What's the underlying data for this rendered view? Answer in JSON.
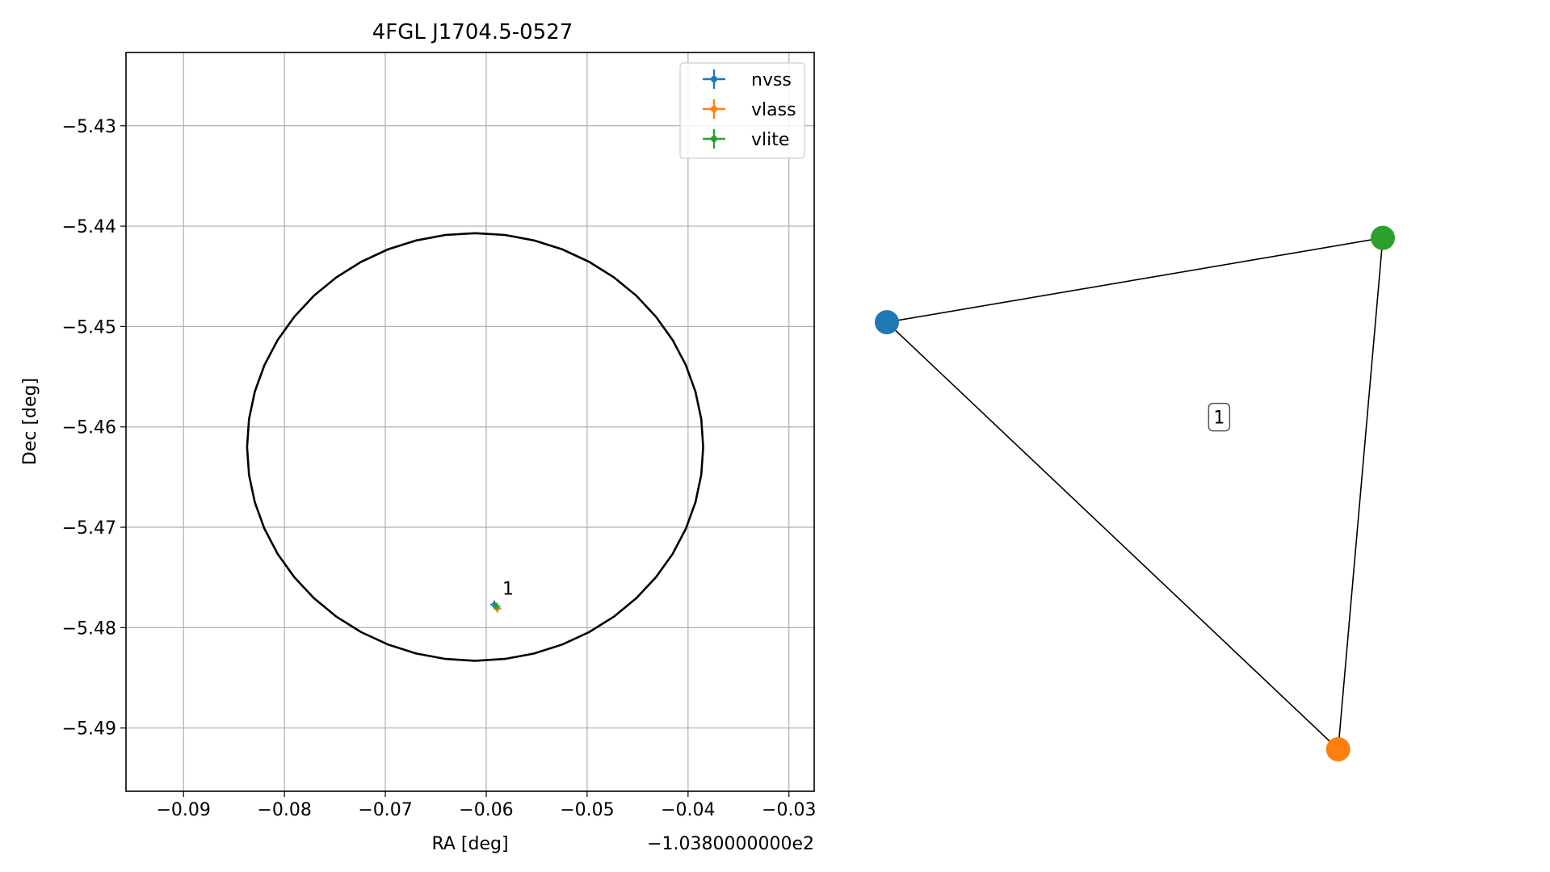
{
  "chart_data": [
    {
      "type": "scatter",
      "title": "4FGL J1704.5-0527",
      "xlabel": "RA [deg]",
      "ylabel": "Dec [deg]",
      "x_offset_label": "−1.0380000000e2",
      "xlim": [
        -0.0957,
        -0.0275
      ],
      "ylim": [
        -5.4963,
        -5.4227
      ],
      "x_ticks": [
        -0.09,
        -0.08,
        -0.07,
        -0.06,
        -0.05,
        -0.04,
        -0.03
      ],
      "x_tick_labels": [
        "−0.09",
        "−0.08",
        "−0.07",
        "−0.06",
        "−0.05",
        "−0.04",
        "−0.03"
      ],
      "y_ticks": [
        -5.43,
        -5.44,
        -5.45,
        -5.46,
        -5.47,
        -5.48,
        -5.49
      ],
      "y_tick_labels": [
        "−5.43",
        "−5.44",
        "−5.45",
        "−5.46",
        "−5.47",
        "−5.48",
        "−5.49"
      ],
      "grid": true,
      "legend_position": "top-right",
      "circle": {
        "center": [
          -0.0611,
          -5.462
        ],
        "radius_x": 0.0226,
        "radius_y": 0.0213
      },
      "series": [
        {
          "name": "nvss",
          "color": "#1f77b4",
          "x": [
            -0.0592
          ],
          "y": [
            -5.4777
          ]
        },
        {
          "name": "vlass",
          "color": "#ff7f0e",
          "x": [
            -0.0589
          ],
          "y": [
            -5.4781
          ]
        },
        {
          "name": "vlite",
          "color": "#2ca02c",
          "x": [
            -0.059
          ],
          "y": [
            -5.4779
          ]
        }
      ],
      "annotations": [
        {
          "text": "1",
          "x": -0.0584,
          "y": -5.4767
        }
      ]
    },
    {
      "type": "network",
      "nodes": [
        {
          "name": "nvss",
          "color": "#1f77b4",
          "x": 0.0,
          "y": 0.81
        },
        {
          "name": "vlite",
          "color": "#2ca02c",
          "x": 1.0,
          "y": 0.97
        },
        {
          "name": "vlass",
          "color": "#ff7f0e",
          "x": 0.91,
          "y": 0.0
        }
      ],
      "edges": [
        [
          "nvss",
          "vlite"
        ],
        [
          "vlite",
          "vlass"
        ],
        [
          "vlass",
          "nvss"
        ]
      ],
      "label": {
        "text": "1",
        "x": 0.67,
        "y": 0.63
      }
    }
  ]
}
